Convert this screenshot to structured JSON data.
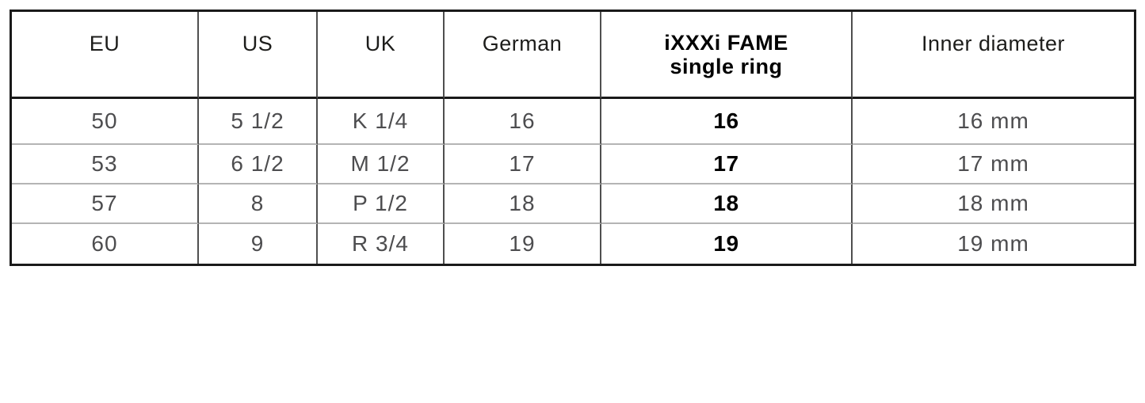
{
  "table": {
    "title": "ring-size-conversion-table",
    "columns": [
      {
        "id": "eu",
        "label": "EU"
      },
      {
        "id": "us",
        "label": "US"
      },
      {
        "id": "uk",
        "label": "UK"
      },
      {
        "id": "german",
        "label": "German"
      },
      {
        "id": "ixxxi",
        "label_line1": "iXXXi FAME",
        "label_line2": "single ring"
      },
      {
        "id": "inner",
        "label": "Inner diameter"
      }
    ],
    "rows": [
      {
        "cells": [
          "50",
          "5 1/2",
          "K 1/4",
          "16",
          "16",
          "16 mm"
        ]
      },
      {
        "cells": [
          "53",
          "6 1/2",
          "M 1/2",
          "17",
          "17",
          "17 mm"
        ]
      },
      {
        "cells": [
          "57",
          "8",
          "P 1/2",
          "18",
          "18",
          "18 mm"
        ]
      },
      {
        "cells": [
          "60",
          "9",
          "R 3/4",
          "19",
          "19",
          "19 mm"
        ]
      }
    ]
  },
  "colors": {
    "outer_border": "#1a1a1a",
    "column_line": "#4f4f4f",
    "row_line": "#b4b4b4",
    "header_text": "#1d1d1b",
    "data_text": "#4d4d4f",
    "bold_text": "#000000",
    "background": "#ffffff"
  }
}
